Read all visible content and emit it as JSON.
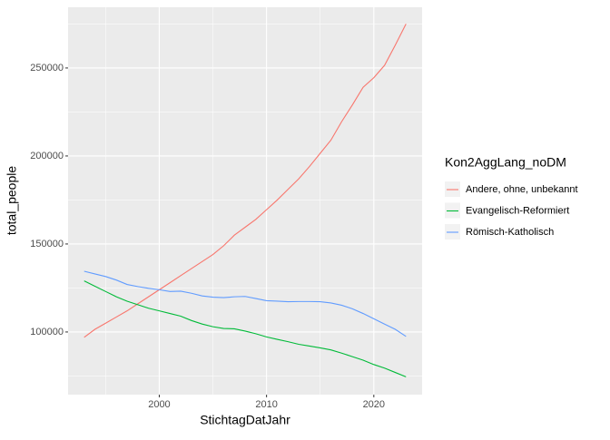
{
  "chart_data": {
    "type": "line",
    "x_label": "StichtagDatJahr",
    "y_label": "total_people",
    "legend_title": "Kon2AggLang_noDM",
    "legend_position": "right",
    "x": [
      1993,
      1994,
      1995,
      1996,
      1997,
      1998,
      1999,
      2000,
      2001,
      2002,
      2003,
      2004,
      2005,
      2006,
      2007,
      2008,
      2009,
      2010,
      2011,
      2012,
      2013,
      2014,
      2015,
      2016,
      2017,
      2018,
      2019,
      2020,
      2021,
      2022,
      2023
    ],
    "series": [
      {
        "name": "Andere, ohne, unbekannt",
        "color": "#f8766d",
        "values": [
          97000,
          101500,
          105000,
          108500,
          112000,
          116000,
          120000,
          124000,
          128000,
          132000,
          136000,
          140000,
          144000,
          149000,
          155000,
          159500,
          164000,
          169500,
          175000,
          181000,
          187000,
          194000,
          201500,
          209000,
          219500,
          229000,
          239000,
          244500,
          251500,
          263000,
          275000
        ]
      },
      {
        "name": "Evangelisch-Reformiert",
        "color": "#00ba38",
        "values": [
          129000,
          126000,
          123000,
          120000,
          117500,
          115500,
          113500,
          112000,
          110500,
          109000,
          106500,
          104500,
          103000,
          102000,
          101800,
          100500,
          99000,
          97200,
          95800,
          94500,
          93000,
          92000,
          91000,
          89800,
          88000,
          86000,
          84000,
          81500,
          79500,
          77000,
          74500
        ]
      },
      {
        "name": "Römisch-Katholisch",
        "color": "#619cff",
        "values": [
          134500,
          133000,
          131500,
          129500,
          127000,
          125800,
          124800,
          124000,
          123000,
          123200,
          122000,
          120500,
          119800,
          119500,
          120000,
          120200,
          119000,
          117800,
          117500,
          117200,
          117300,
          117300,
          117200,
          116500,
          115200,
          113200,
          110500,
          107500,
          104500,
          101500,
          97500
        ]
      }
    ],
    "xlim": [
      1991.5,
      2024.5
    ],
    "ylim": [
      64400,
      284500
    ],
    "xticks": [
      2000,
      2010,
      2020
    ],
    "yticks": [
      100000,
      150000,
      200000,
      250000
    ],
    "grid": true
  }
}
